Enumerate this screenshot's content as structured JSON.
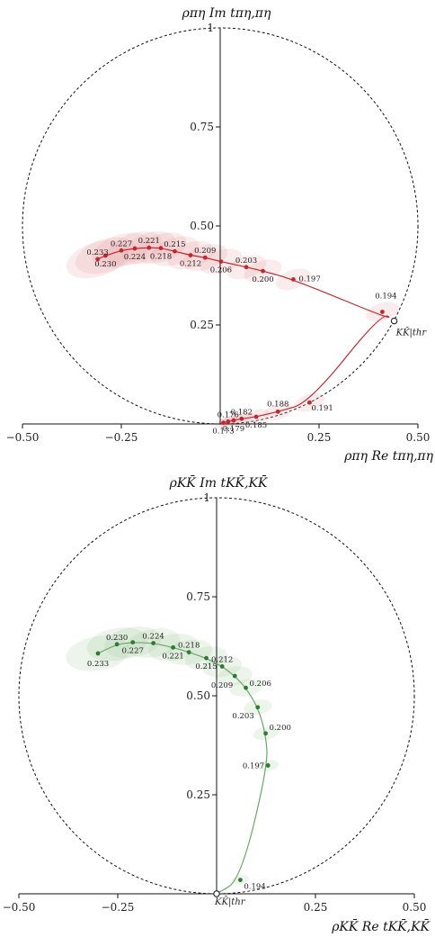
{
  "chart_data": [
    {
      "type": "scatter",
      "title": "",
      "xlabel": "ρπη Re tπη,πη",
      "ylabel": "ρπη Im tπη,πη",
      "xlim": [
        -0.5,
        0.5
      ],
      "ylim": [
        0,
        1
      ],
      "xticks": [
        "−0.50",
        "−0.25",
        "0.25",
        "0.50"
      ],
      "yticks": [
        "0.25",
        "0.50",
        "0.75",
        "1"
      ],
      "threshold_label": "KK̄|thr",
      "threshold": [
        0.44,
        0.26
      ],
      "unit_circle": true,
      "color": "#c0282d",
      "band_color": "#e6a5a8",
      "series": [
        {
          "points": [
            {
              "label": "0.173",
              "x": 0.008,
              "y": 0.003
            },
            {
              "label": "0.176",
              "x": 0.02,
              "y": 0.006
            },
            {
              "label": "0.179",
              "x": 0.034,
              "y": 0.009
            },
            {
              "label": "0.182",
              "x": 0.054,
              "y": 0.013
            },
            {
              "label": "0.185",
              "x": 0.091,
              "y": 0.018
            },
            {
              "label": "0.188",
              "x": 0.146,
              "y": 0.031
            },
            {
              "label": "0.191",
              "x": 0.226,
              "y": 0.054
            },
            {
              "label": "0.194",
              "x": 0.41,
              "y": 0.283
            },
            {
              "label": "0.197",
              "x": 0.185,
              "y": 0.365
            },
            {
              "label": "0.200",
              "x": 0.108,
              "y": 0.386
            },
            {
              "label": "0.203",
              "x": 0.066,
              "y": 0.396
            },
            {
              "label": "0.206",
              "x": 0.002,
              "y": 0.41
            },
            {
              "label": "0.209",
              "x": -0.038,
              "y": 0.42
            },
            {
              "label": "0.212",
              "x": -0.075,
              "y": 0.426
            },
            {
              "label": "0.215",
              "x": -0.115,
              "y": 0.436
            },
            {
              "label": "0.218",
              "x": -0.15,
              "y": 0.444
            },
            {
              "label": "0.221",
              "x": -0.18,
              "y": 0.445
            },
            {
              "label": "0.224",
              "x": -0.216,
              "y": 0.443
            },
            {
              "label": "0.227",
              "x": -0.25,
              "y": 0.438
            },
            {
              "label": "0.230",
              "x": -0.29,
              "y": 0.425
            },
            {
              "label": "0.233",
              "x": -0.31,
              "y": 0.416
            }
          ]
        }
      ]
    },
    {
      "type": "scatter",
      "title": "",
      "xlabel": "ρKK̄ Re tKK̄,KK̄",
      "ylabel": "ρKK̄ Im tKK̄,KK̄",
      "xlim": [
        -0.5,
        0.5
      ],
      "ylim": [
        0,
        1
      ],
      "xticks": [
        "−0.50",
        "−0.25",
        "0.25",
        "0.50"
      ],
      "yticks": [
        "0.25",
        "0.50",
        "0.75",
        "1"
      ],
      "threshold_label": "KK̄|thr",
      "threshold": [
        0.0,
        0.0
      ],
      "unit_circle": true,
      "color": "#2e7a30",
      "band_color": "#a7cfa5",
      "series": [
        {
          "points": [
            {
              "label": "0.194",
              "x": 0.06,
              "y": 0.035
            },
            {
              "label": "0.197",
              "x": 0.13,
              "y": 0.324
            },
            {
              "label": "0.200",
              "x": 0.124,
              "y": 0.405
            },
            {
              "label": "0.203",
              "x": 0.104,
              "y": 0.471
            },
            {
              "label": "0.206",
              "x": 0.074,
              "y": 0.52
            },
            {
              "label": "0.209",
              "x": 0.046,
              "y": 0.55
            },
            {
              "label": "0.212",
              "x": 0.014,
              "y": 0.574
            },
            {
              "label": "0.215",
              "x": -0.026,
              "y": 0.595
            },
            {
              "label": "0.218",
              "x": -0.07,
              "y": 0.61
            },
            {
              "label": "0.221",
              "x": -0.11,
              "y": 0.622
            },
            {
              "label": "0.224",
              "x": -0.16,
              "y": 0.633
            },
            {
              "label": "0.227",
              "x": -0.212,
              "y": 0.635
            },
            {
              "label": "0.230",
              "x": -0.252,
              "y": 0.63
            },
            {
              "label": "0.233",
              "x": -0.3,
              "y": 0.607
            }
          ]
        }
      ]
    }
  ]
}
